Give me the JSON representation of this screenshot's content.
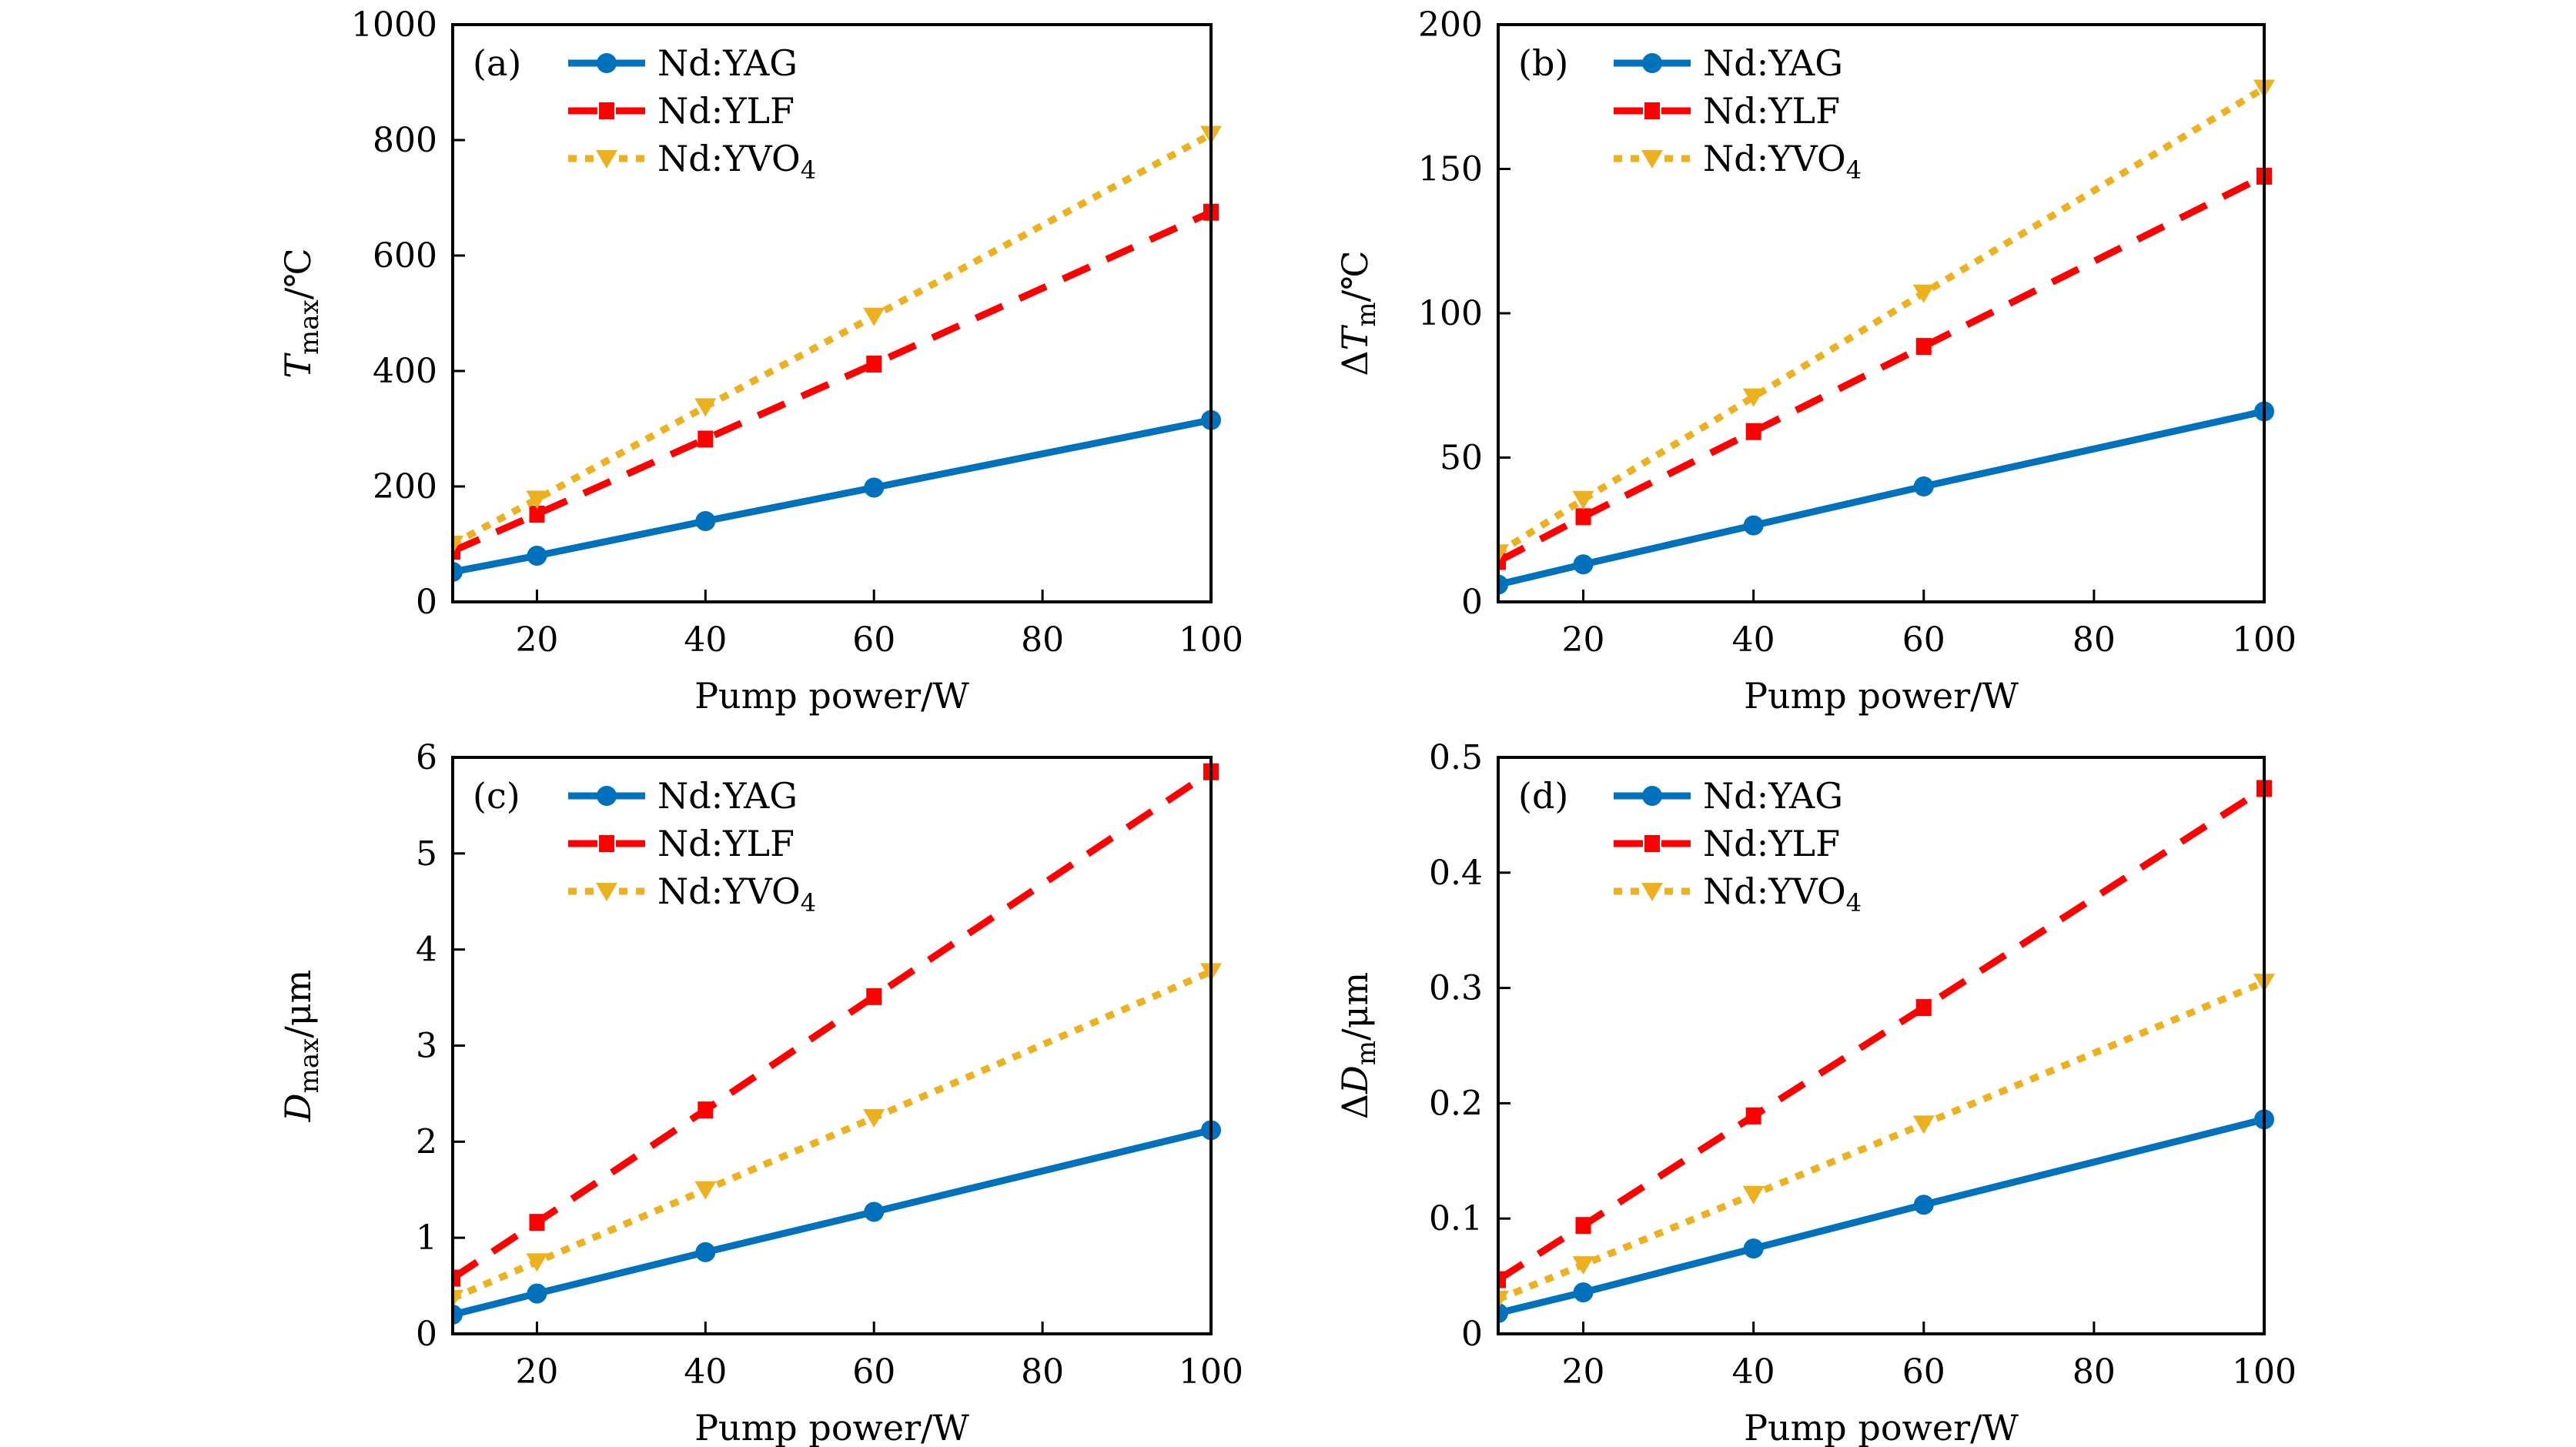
{
  "chart_data": [
    {
      "type": "line",
      "panel_label": "(a)",
      "xlabel": "Pump power/W",
      "ylabel": {
        "symbol": "T",
        "sub": "max",
        "unit": "/℃",
        "prefix": ""
      },
      "xlim": [
        10,
        100
      ],
      "ylim": [
        0,
        1000
      ],
      "xticks": [
        20,
        40,
        60,
        80,
        100
      ],
      "yticks": [
        0,
        200,
        400,
        600,
        800,
        1000
      ],
      "ytick_labels": [
        "0",
        "200",
        "400",
        "600",
        "800",
        "1000"
      ],
      "x": [
        10,
        20,
        40,
        60,
        100
      ],
      "grid": false,
      "legend_position": "top-left",
      "series": [
        {
          "name": "Nd:YAG",
          "name_sub": "",
          "values": [
            52,
            80,
            140,
            198,
            315
          ]
        },
        {
          "name": "Nd:YLF",
          "name_sub": "",
          "values": [
            88,
            152,
            282,
            412,
            675
          ]
        },
        {
          "name": "Nd:YVO",
          "name_sub": "4",
          "values": [
            100,
            178,
            338,
            495,
            810
          ]
        }
      ]
    },
    {
      "type": "line",
      "panel_label": "(b)",
      "xlabel": "Pump power/W",
      "ylabel": {
        "symbol": "T",
        "sub": "m",
        "unit": "/℃",
        "prefix": "Δ"
      },
      "xlim": [
        10,
        100
      ],
      "ylim": [
        0,
        200
      ],
      "xticks": [
        20,
        40,
        60,
        80,
        100
      ],
      "yticks": [
        0,
        50,
        100,
        150,
        200
      ],
      "ytick_labels": [
        "0",
        "50",
        "100",
        "150",
        "200"
      ],
      "x": [
        10,
        20,
        40,
        60,
        100
      ],
      "grid": false,
      "legend_position": "top-left",
      "series": [
        {
          "name": "Nd:YAG",
          "name_sub": "",
          "values": [
            6,
            13,
            26.5,
            40,
            66
          ]
        },
        {
          "name": "Nd:YLF",
          "name_sub": "",
          "values": [
            14,
            29.5,
            59,
            88.5,
            147.5
          ]
        },
        {
          "name": "Nd:YVO",
          "name_sub": "4",
          "values": [
            17,
            35.5,
            71,
            107,
            178
          ]
        }
      ]
    },
    {
      "type": "line",
      "panel_label": "(c)",
      "xlabel": "Pump power/W",
      "ylabel": {
        "symbol": "D",
        "sub": "max",
        "unit": "/μm",
        "prefix": ""
      },
      "xlim": [
        10,
        100
      ],
      "ylim": [
        0,
        6
      ],
      "xticks": [
        20,
        40,
        60,
        80,
        100
      ],
      "yticks": [
        0,
        1,
        2,
        3,
        4,
        5,
        6
      ],
      "ytick_labels": [
        "0",
        "1",
        "2",
        "3",
        "4",
        "5",
        "6"
      ],
      "x": [
        10,
        20,
        40,
        60,
        100
      ],
      "grid": false,
      "legend_position": "top-left",
      "series": [
        {
          "name": "Nd:YAG",
          "name_sub": "",
          "values": [
            0.2,
            0.42,
            0.85,
            1.27,
            2.12
          ]
        },
        {
          "name": "Nd:YLF",
          "name_sub": "",
          "values": [
            0.58,
            1.16,
            2.33,
            3.51,
            5.85
          ]
        },
        {
          "name": "Nd:YVO",
          "name_sub": "4",
          "values": [
            0.37,
            0.75,
            1.5,
            2.25,
            3.77
          ]
        }
      ]
    },
    {
      "type": "line",
      "panel_label": "(d)",
      "xlabel": "Pump power/W",
      "ylabel": {
        "symbol": "D",
        "sub": "m",
        "unit": "/μm",
        "prefix": "Δ"
      },
      "xlim": [
        10,
        100
      ],
      "ylim": [
        0,
        0.5
      ],
      "xticks": [
        20,
        40,
        60,
        80,
        100
      ],
      "yticks": [
        0,
        0.1,
        0.2,
        0.3,
        0.4,
        0.5
      ],
      "ytick_labels": [
        "0",
        "0.1",
        "0.2",
        "0.3",
        "0.4",
        "0.5"
      ],
      "x": [
        10,
        20,
        40,
        60,
        100
      ],
      "grid": false,
      "legend_position": "top-left",
      "series": [
        {
          "name": "Nd:YAG",
          "name_sub": "",
          "values": [
            0.018,
            0.036,
            0.074,
            0.112,
            0.186
          ]
        },
        {
          "name": "Nd:YLF",
          "name_sub": "",
          "values": [
            0.047,
            0.094,
            0.189,
            0.283,
            0.473
          ]
        },
        {
          "name": "Nd:YVO",
          "name_sub": "4",
          "values": [
            0.03,
            0.06,
            0.121,
            0.182,
            0.305
          ]
        }
      ]
    }
  ],
  "series_styles": [
    {
      "name": "Nd:YAG",
      "color": "#0072BD",
      "line": "solid",
      "marker": "circle"
    },
    {
      "name": "Nd:YLF",
      "color": "#FF0000",
      "line": "dashed",
      "marker": "square"
    },
    {
      "name": "Nd:YVO4",
      "color": "#EDB120",
      "line": "dotted",
      "marker": "triangle-down"
    }
  ]
}
